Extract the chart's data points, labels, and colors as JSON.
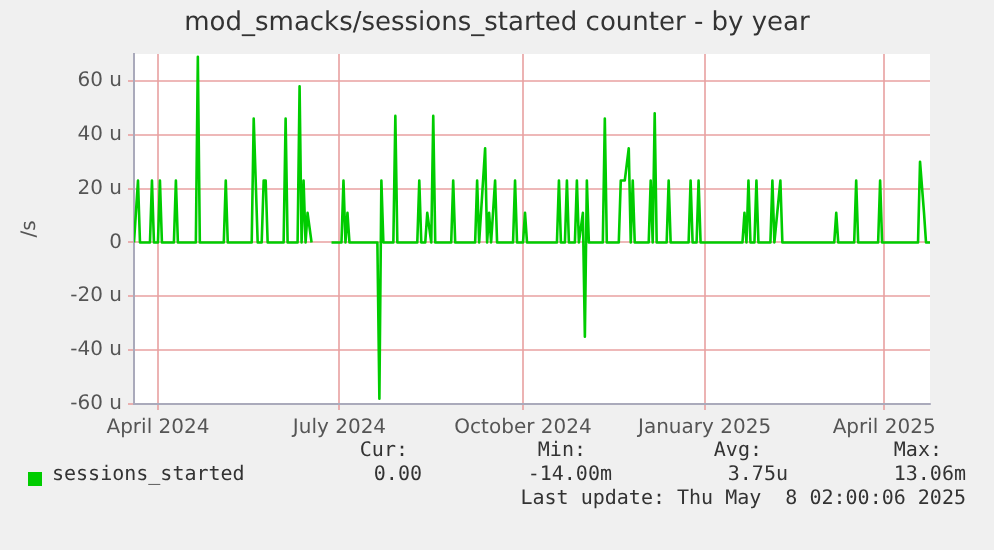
{
  "chart_data": {
    "type": "line",
    "title": "mod_smacks/sessions_started counter - by year",
    "ylabel": "/s",
    "xlim": [
      "2024-04-04",
      "2025-05-08"
    ],
    "xticks": [
      {
        "value": "2024-04-16",
        "label": "April 2024"
      },
      {
        "value": "2024-07-16",
        "label": "July 2024"
      },
      {
        "value": "2024-10-16",
        "label": "October 2024"
      },
      {
        "value": "2025-01-15",
        "label": "January 2025"
      },
      {
        "value": "2025-04-15",
        "label": "April 2025"
      }
    ],
    "ylim": [
      -60,
      70
    ],
    "yticks": [
      {
        "value": -60,
        "label": "-60 u"
      },
      {
        "value": -40,
        "label": "-40 u"
      },
      {
        "value": -20,
        "label": "-20 u"
      },
      0,
      {
        "value": 20,
        "label": "20 u"
      },
      {
        "value": 40,
        "label": "40 u"
      },
      {
        "value": 60,
        "label": "60 u"
      }
    ],
    "grid": true,
    "legend": "bottom",
    "marker": "none",
    "line_style": "solid",
    "x": [
      "2024-04-04",
      "2024-04-05",
      "2024-04-06",
      "2024-04-07",
      "2024-04-12",
      "2024-04-13",
      "2024-04-14",
      "2024-04-16",
      "2024-04-17",
      "2024-04-18",
      "2024-04-24",
      "2024-04-25",
      "2024-04-26",
      "2024-05-05",
      "2024-05-06",
      "2024-05-07",
      "2024-05-19",
      "2024-05-20",
      "2024-05-21",
      "2024-06-02",
      "2024-06-03",
      "2024-06-05",
      "2024-06-07",
      "2024-06-08",
      "2024-06-09",
      "2024-06-10",
      "2024-06-18",
      "2024-06-19",
      "2024-06-20",
      "2024-06-25",
      "2024-06-26",
      "2024-06-27",
      "2024-06-28",
      "2024-06-29",
      "2024-06-30",
      "2024-07-02",
      "2024-07-07",
      "2024-07-12",
      "2024-07-17",
      "2024-07-18",
      "2024-07-19",
      "2024-07-20",
      "2024-07-21",
      "2024-08-04",
      "2024-08-05",
      "2024-08-06",
      "2024-08-07",
      "2024-08-12",
      "2024-08-13",
      "2024-08-14",
      "2024-08-24",
      "2024-08-25",
      "2024-08-26",
      "2024-08-28",
      "2024-08-29",
      "2024-08-31",
      "2024-09-01",
      "2024-09-02",
      "2024-09-10",
      "2024-09-11",
      "2024-09-12",
      "2024-09-22",
      "2024-09-23",
      "2024-09-24",
      "2024-09-27",
      "2024-09-28",
      "2024-09-29",
      "2024-09-30",
      "2024-10-02",
      "2024-10-03",
      "2024-10-11",
      "2024-10-12",
      "2024-10-13",
      "2024-10-16",
      "2024-10-17",
      "2024-10-18",
      "2024-11-02",
      "2024-11-03",
      "2024-11-04",
      "2024-11-06",
      "2024-11-07",
      "2024-11-08",
      "2024-11-11",
      "2024-11-12",
      "2024-11-13",
      "2024-11-15",
      "2024-11-16",
      "2024-11-17",
      "2024-11-18",
      "2024-11-25",
      "2024-11-26",
      "2024-11-27",
      "2024-12-03",
      "2024-12-04",
      "2024-12-06",
      "2024-12-08",
      "2024-12-09",
      "2024-12-10",
      "2024-12-11",
      "2024-12-18",
      "2024-12-19",
      "2024-12-20",
      "2024-12-21",
      "2024-12-22",
      "2024-12-27",
      "2024-12-28",
      "2024-12-29",
      "2025-01-07",
      "2025-01-08",
      "2025-01-09",
      "2025-01-11",
      "2025-01-12",
      "2025-01-13",
      "2025-02-03",
      "2025-02-04",
      "2025-02-05",
      "2025-02-06",
      "2025-02-07",
      "2025-02-09",
      "2025-02-10",
      "2025-02-11",
      "2025-02-17",
      "2025-02-18",
      "2025-02-19",
      "2025-02-22",
      "2025-02-23",
      "2025-03-21",
      "2025-03-22",
      "2025-03-23",
      "2025-03-31",
      "2025-04-01",
      "2025-04-02",
      "2025-04-12",
      "2025-04-13",
      "2025-04-14",
      "2025-05-02",
      "2025-05-03",
      "2025-05-05",
      "2025-05-06",
      "2025-05-08"
    ],
    "series": [
      {
        "name": "sessions_started",
        "color": "#00cc00",
        "values": [
          0,
          0,
          23,
          0,
          0,
          23,
          0,
          0,
          23,
          0,
          0,
          23,
          0,
          0,
          69,
          0,
          0,
          23,
          0,
          0,
          46,
          0,
          0,
          23,
          23,
          0,
          0,
          46,
          0,
          0,
          58,
          0,
          23,
          0,
          11,
          0,
          null,
          0,
          0,
          23,
          0,
          11,
          0,
          0,
          -58,
          23,
          0,
          0,
          47,
          0,
          0,
          23,
          0,
          0,
          11,
          0,
          47,
          0,
          0,
          23,
          0,
          0,
          23,
          0,
          35,
          0,
          11,
          0,
          23,
          0,
          0,
          23,
          0,
          0,
          11,
          0,
          0,
          23,
          0,
          0,
          23,
          0,
          0,
          23,
          0,
          11,
          -35,
          23,
          0,
          0,
          46,
          0,
          0,
          23,
          23,
          35,
          0,
          23,
          0,
          0,
          23,
          0,
          48,
          0,
          0,
          23,
          0,
          0,
          23,
          0,
          0,
          23,
          0,
          0,
          11,
          0,
          23,
          0,
          0,
          23,
          0,
          0,
          23,
          0,
          23,
          0,
          0,
          11,
          0,
          0,
          23,
          0,
          0,
          23,
          0,
          0,
          30,
          11,
          0,
          0
        ]
      }
    ],
    "annotations": [
      "Cur:",
      "0.00",
      "Min:",
      "-14.00m",
      "Avg:",
      "3.75u",
      "Max:",
      "13.06m",
      "Last update: Thu May  8 02:00:06 2025"
    ]
  }
}
